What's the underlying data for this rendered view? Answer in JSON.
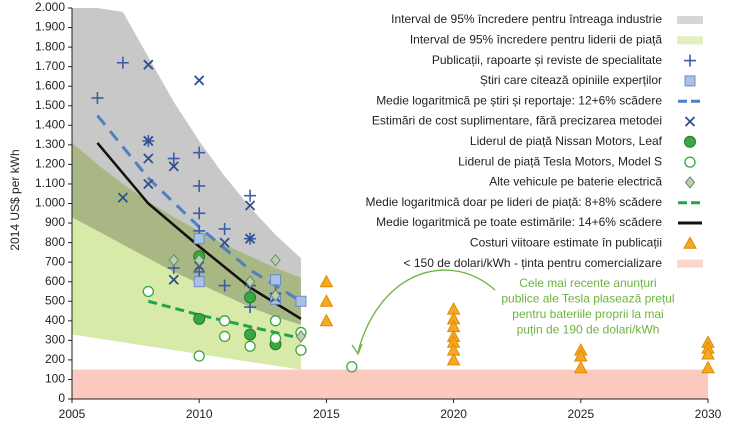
{
  "chart_data": {
    "type": "scatter",
    "ylabel": "2014 US$ per kWh",
    "xlim": [
      2005,
      2030
    ],
    "xticks": [
      2005,
      2010,
      2015,
      2020,
      2025,
      2030
    ],
    "ylim": [
      0,
      2000
    ],
    "yticks": [
      0,
      100,
      200,
      300,
      400,
      500,
      600,
      700,
      800,
      900,
      {
        "value": 1000,
        "label": "1.000"
      },
      {
        "value": 1100,
        "label": "1.100"
      },
      {
        "value": 1200,
        "label": "1.200"
      },
      {
        "value": 1300,
        "label": "1.300"
      },
      {
        "value": 1400,
        "label": "1.400"
      },
      {
        "value": 1500,
        "label": "1.500"
      },
      {
        "value": 1600,
        "label": "1.600"
      },
      {
        "value": 1700,
        "label": "1.700"
      },
      {
        "value": 1800,
        "label": "1.800"
      },
      {
        "value": 1900,
        "label": "1.900"
      },
      {
        "value": 2000,
        "label": "2.000"
      }
    ],
    "annotation": [
      "Cele mai recente anunțuri",
      "publice ale Tesla plasează prețul",
      "pentru bateriile proprii la mai",
      "puțin de 190 de dolari/kWh"
    ],
    "series": [
      {
        "name": "Interval de 95% încredere pentru întreaga industrie",
        "kind": "band",
        "color": "#c8c8c8",
        "x": [
          2005,
          2006,
          2007,
          2008,
          2009,
          2010,
          2011,
          2012,
          2013,
          2014
        ],
        "values": [
          2000,
          2000,
          1980,
          1750,
          1520,
          1320,
          1140,
          980,
          840,
          720
        ],
        "lower": [
          930,
          860,
          790,
          720,
          650,
          590,
          530,
          470,
          420,
          380
        ]
      },
      {
        "name": "Interval de 95% încredere pentru liderii de piață",
        "kind": "band",
        "color": "#d8eaa8",
        "x": [
          2005,
          2006,
          2007,
          2008,
          2009,
          2010,
          2011,
          2012,
          2013,
          2014
        ],
        "values": [
          1310,
          1200,
          1100,
          1010,
          930,
          860,
          790,
          730,
          670,
          620
        ],
        "lower": [
          330,
          310,
          290,
          270,
          250,
          230,
          210,
          190,
          170,
          150
        ]
      },
      {
        "name": "Publicații, rapoarte și reviste de specialitate",
        "kind": "scatter",
        "marker": "plus",
        "color": "#3b5ea8",
        "x": [
          2006,
          2007,
          2009,
          2009,
          2010,
          2010,
          2010,
          2010,
          2010,
          2011,
          2011,
          2012,
          2012,
          2012,
          2012,
          2013,
          2008
        ],
        "values": [
          1540,
          1720,
          1230,
          670,
          1260,
          1090,
          950,
          860,
          650,
          870,
          580,
          1040,
          820,
          580,
          470,
          540,
          1320
        ]
      },
      {
        "name": "Știri care citează opiniile experților",
        "kind": "scatter",
        "marker": "square",
        "color": "#aac0e4",
        "x": [
          2010,
          2010,
          2013,
          2013,
          2014
        ],
        "values": [
          820,
          600,
          610,
          510,
          500
        ]
      },
      {
        "name": "Medie logaritmică pe știri și reportaje: 12+6% scădere",
        "kind": "line",
        "dash": "12 8",
        "color": "#4f7fc6",
        "x": [
          2006,
          2008,
          2010,
          2012,
          2014
        ],
        "values": [
          1450,
          1130,
          880,
          660,
          500
        ]
      },
      {
        "name": "Estimări de cost suplimentare, fără precizarea metodei",
        "kind": "scatter",
        "marker": "cross",
        "color": "#2f4f8f",
        "x": [
          2007,
          2008,
          2008,
          2008,
          2008,
          2009,
          2009,
          2010,
          2010,
          2011,
          2012,
          2012,
          2013
        ],
        "values": [
          1030,
          1710,
          1320,
          1230,
          1100,
          1190,
          610,
          1630,
          680,
          800,
          990,
          820,
          520
        ]
      },
      {
        "name": "Liderul de piață Nissan Motors, Leaf",
        "kind": "scatter",
        "marker": "dot",
        "color": "#3aa640",
        "x": [
          2010,
          2010,
          2012,
          2012,
          2013
        ],
        "values": [
          730,
          410,
          520,
          330,
          280
        ]
      },
      {
        "name": "Liderul de piață Tesla Motors, Model S",
        "kind": "scatter",
        "marker": "ring",
        "color": "#3aa640",
        "x": [
          2008,
          2010,
          2011,
          2011,
          2012,
          2013,
          2013,
          2014,
          2014,
          2016
        ],
        "values": [
          550,
          220,
          400,
          320,
          270,
          400,
          310,
          340,
          250,
          165
        ]
      },
      {
        "name": "Alte vehicule pe baterie electrică",
        "kind": "scatter",
        "marker": "diamond",
        "color": "#b8cfb0",
        "x": [
          2009,
          2010,
          2012,
          2013,
          2013,
          2014
        ],
        "values": [
          710,
          710,
          600,
          710,
          530,
          320
        ]
      },
      {
        "name": "Medie logaritmică doar pe lideri de piață: 8+8% scădere",
        "kind": "line",
        "dash": "9 5",
        "color": "#1fa54a",
        "x": [
          2008,
          2010,
          2012,
          2014
        ],
        "values": [
          500,
          430,
          370,
          310
        ]
      },
      {
        "name": "Medie logaritmică pe toate estimările: 14+6% scădere",
        "kind": "line",
        "color": "#111111",
        "x": [
          2006,
          2008,
          2010,
          2012,
          2014
        ],
        "values": [
          1310,
          1000,
          780,
          570,
          410
        ]
      },
      {
        "name": "Costuri viitoare estimate în publicații",
        "kind": "scatter",
        "marker": "triangle",
        "color": "#f7a823",
        "x": [
          2015,
          2015,
          2015,
          2020,
          2020,
          2020,
          2020,
          2020,
          2020,
          2020,
          2025,
          2025,
          2025,
          2030,
          2030,
          2030,
          2030
        ],
        "values": [
          600,
          500,
          400,
          460,
          410,
          370,
          320,
          290,
          250,
          200,
          250,
          220,
          160,
          290,
          260,
          230,
          160
        ]
      },
      {
        "name": "< 150 de dolari/kWh - ținta pentru comercializare",
        "kind": "band",
        "color": "#fbc9bd",
        "x": [
          2005,
          2030
        ],
        "values": [
          150,
          150
        ],
        "lower": [
          0,
          0
        ]
      }
    ]
  }
}
